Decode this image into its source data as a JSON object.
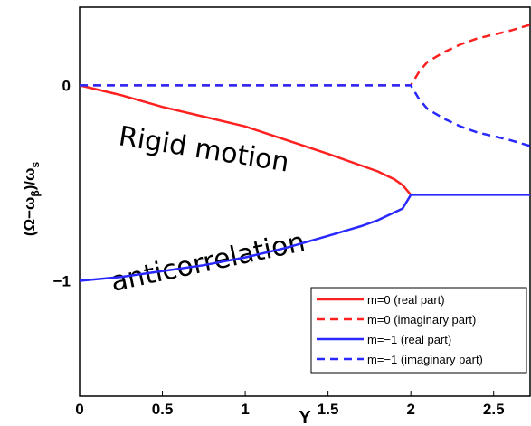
{
  "chart_data": {
    "type": "line",
    "xlabel": "Υ",
    "ylabel": [
      "(Ω−ω",
      "β",
      ")/ω",
      "s"
    ],
    "xlim": [
      0,
      2.72
    ],
    "ylim": [
      -1.59,
      0.4
    ],
    "xticks": [
      0,
      0.5,
      1,
      1.5,
      2,
      2.5
    ],
    "yticks": [
      0,
      {
        "value": -1,
        "label": "−1"
      }
    ],
    "annotations": [
      "Rigid motion",
      "anticorrelation"
    ],
    "legend": "lower right",
    "series": [
      {
        "name": "m=0 (real part)",
        "color": "#ff2020",
        "dash": false,
        "x": [
          0,
          0.25,
          0.5,
          0.75,
          1,
          1.25,
          1.5,
          1.7,
          1.8,
          1.9,
          1.95,
          2
        ],
        "values": [
          0,
          -0.05,
          -0.11,
          -0.16,
          -0.21,
          -0.28,
          -0.35,
          -0.41,
          -0.44,
          -0.48,
          -0.51,
          -0.56
        ]
      },
      {
        "name": "m=0 (imaginary part)",
        "color": "#ff2020",
        "dash": true,
        "x": [
          0,
          2,
          2.05,
          2.1,
          2.2,
          2.3,
          2.4,
          2.5,
          2.6,
          2.72
        ],
        "values": [
          0,
          0,
          0.07,
          0.12,
          0.17,
          0.21,
          0.24,
          0.26,
          0.28,
          0.31
        ]
      },
      {
        "name": "m=−1 (real part)",
        "color": "#2828ff",
        "dash": false,
        "x": [
          0,
          0.25,
          0.5,
          0.75,
          1,
          1.25,
          1.5,
          1.7,
          1.8,
          1.9,
          1.95,
          2,
          2.72
        ],
        "values": [
          -1,
          -0.98,
          -0.95,
          -0.92,
          -0.88,
          -0.83,
          -0.77,
          -0.72,
          -0.69,
          -0.65,
          -0.63,
          -0.56,
          -0.56
        ]
      },
      {
        "name": "m=−1 (imaginary part)",
        "color": "#2828ff",
        "dash": true,
        "x": [
          0,
          2,
          2.05,
          2.1,
          2.2,
          2.3,
          2.4,
          2.5,
          2.6,
          2.72
        ],
        "values": [
          0,
          0,
          -0.07,
          -0.12,
          -0.17,
          -0.21,
          -0.24,
          -0.26,
          -0.28,
          -0.31
        ]
      }
    ]
  }
}
